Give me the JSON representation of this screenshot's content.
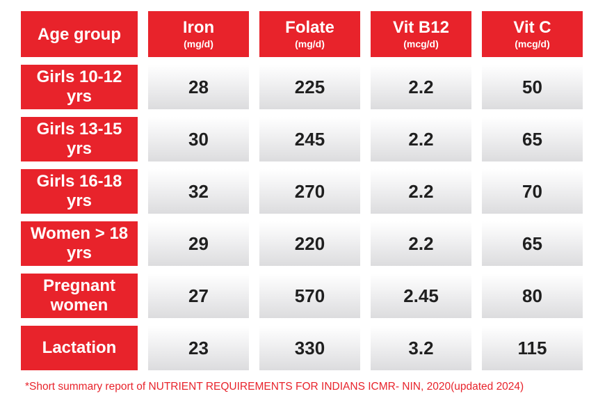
{
  "table": {
    "headers": [
      {
        "main": "Age group",
        "unit": ""
      },
      {
        "main": "Iron",
        "unit": "(mg/d)"
      },
      {
        "main": "Folate",
        "unit": "(mg/d)"
      },
      {
        "main": "Vit B12",
        "unit": "(mcg/d)"
      },
      {
        "main": "Vit C",
        "unit": "(mcg/d)"
      }
    ],
    "rows": [
      {
        "group": "Girls 10-12 yrs",
        "iron": "28",
        "folate": "225",
        "b12": "2.2",
        "vitc": "50"
      },
      {
        "group": "Girls 13-15 yrs",
        "iron": "30",
        "folate": "245",
        "b12": "2.2",
        "vitc": "65"
      },
      {
        "group": "Girls 16-18 yrs",
        "iron": "32",
        "folate": "270",
        "b12": "2.2",
        "vitc": "70"
      },
      {
        "group": "Women > 18 yrs",
        "iron": "29",
        "folate": "220",
        "b12": "2.2",
        "vitc": "65"
      },
      {
        "group": "Pregnant women",
        "iron": "27",
        "folate": "570",
        "b12": "2.45",
        "vitc": "80"
      },
      {
        "group": "Lactation",
        "iron": "23",
        "folate": "330",
        "b12": "3.2",
        "vitc": "115"
      }
    ]
  },
  "footnote": "*Short summary report of NUTRIENT REQUIREMENTS FOR INDIANS ICMR- NIN, 2020(updated 2024)",
  "colors": {
    "accent_red": "#e8232b",
    "cell_gray": "#dcdcde",
    "text_dark": "#1f1f1f"
  }
}
